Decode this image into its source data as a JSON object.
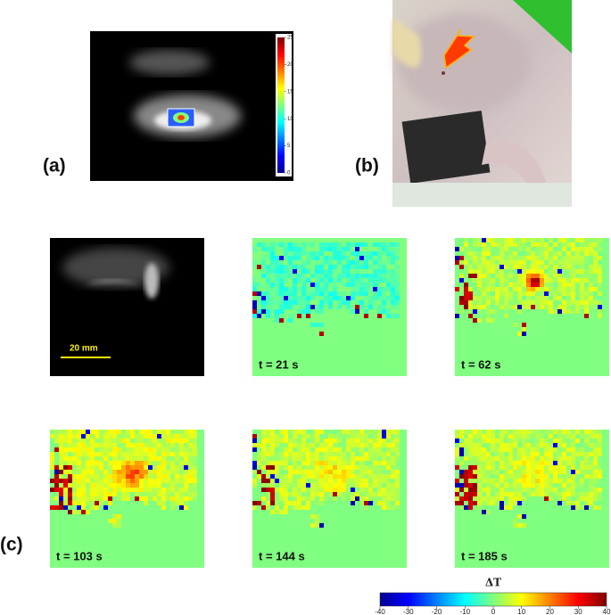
{
  "panels": {
    "a": {
      "label": "(a)",
      "colorbar_ticks": [
        25,
        20,
        15,
        10,
        5,
        0
      ]
    },
    "b": {
      "label": "(b)"
    },
    "c": {
      "label": "(c)",
      "scale_bar": "20 mm",
      "maps": [
        {
          "time": "t = 21 s"
        },
        {
          "time": "t = 62 s"
        },
        {
          "time": "t = 103 s"
        },
        {
          "time": "t = 144 s"
        },
        {
          "time": "t = 185 s"
        }
      ]
    }
  },
  "colorbar": {
    "title": "ΔT",
    "ticks": [
      -40,
      -30,
      -20,
      -10,
      0,
      10,
      20,
      30,
      40
    ]
  }
}
